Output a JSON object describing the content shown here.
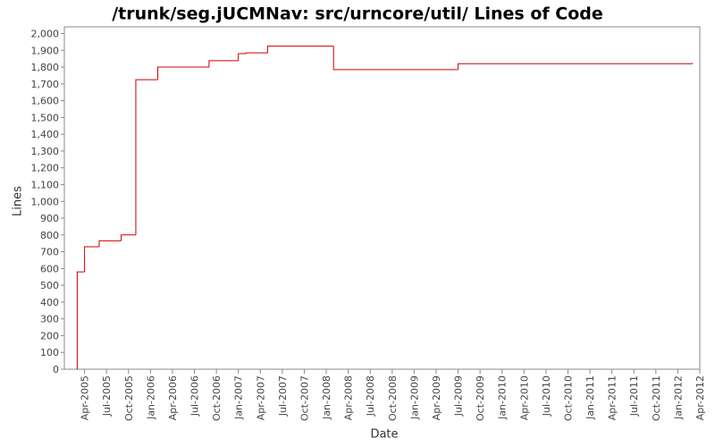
{
  "chart_data": {
    "type": "step",
    "title": "/trunk/seg.jUCMNav: src/urncore/util/ Lines of Code",
    "x_label": "Date",
    "y_label": "Lines",
    "x": [
      "Mar-2005",
      "Mar-2005",
      "Apr-2005",
      "Jun-2005",
      "Sep-2005",
      "Nov-2005",
      "Feb-2006",
      "Sep-2006",
      "Jan-2007",
      "Feb-2007",
      "May-2007",
      "Feb-2008",
      "Jul-2009",
      "Mar-2012"
    ],
    "series": [
      {
        "name": "Lines",
        "color": "#cc0000",
        "values": [
          0,
          580,
          730,
          765,
          800,
          1725,
          1800,
          1838,
          1880,
          1885,
          1925,
          1785,
          1820,
          1825
        ]
      }
    ],
    "xlim": [
      "Jan-2005",
      "Apr-2012"
    ],
    "xticks": [
      "Apr-2005",
      "Jul-2005",
      "Oct-2005",
      "Jan-2006",
      "Apr-2006",
      "Jul-2006",
      "Oct-2006",
      "Jan-2007",
      "Apr-2007",
      "Jul-2007",
      "Oct-2007",
      "Jan-2008",
      "Apr-2008",
      "Jul-2008",
      "Oct-2008",
      "Jan-2009",
      "Apr-2009",
      "Jul-2009",
      "Oct-2009",
      "Jan-2010",
      "Apr-2010",
      "Jul-2010",
      "Oct-2010",
      "Jan-2011",
      "Apr-2011",
      "Jul-2011",
      "Oct-2011",
      "Jan-2012",
      "Apr-2012"
    ],
    "ylim": [
      0,
      2040
    ],
    "yticks": [
      0,
      100,
      200,
      300,
      400,
      500,
      600,
      700,
      800,
      900,
      {
        "value": 1000,
        "label": "1,000"
      },
      {
        "value": 1100,
        "label": "1,100"
      },
      {
        "value": 1200,
        "label": "1,200"
      },
      {
        "value": 1300,
        "label": "1,300"
      },
      {
        "value": 1400,
        "label": "1,400"
      },
      {
        "value": 1500,
        "label": "1,500"
      },
      {
        "value": 1600,
        "label": "1,600"
      },
      {
        "value": 1700,
        "label": "1,700"
      },
      {
        "value": 1800,
        "label": "1,800"
      },
      {
        "value": 1900,
        "label": "1,900"
      },
      {
        "value": 2000,
        "label": "2,000"
      }
    ],
    "grid": false
  }
}
